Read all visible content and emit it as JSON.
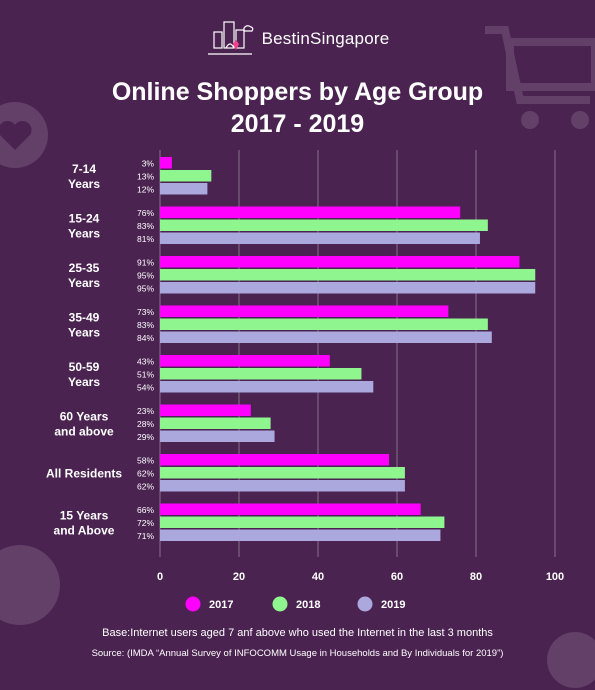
{
  "brand": {
    "name": "BestinSingapore"
  },
  "header": {
    "title_line1": "Online Shoppers by Age Group",
    "title_line2": "2017 - 2019"
  },
  "colors": {
    "background": "#4a2350",
    "2017": "#ff00ff",
    "2018": "#8ff58e",
    "2019": "#aaa8dc"
  },
  "chart_data": {
    "type": "bar",
    "orientation": "horizontal",
    "categories": [
      [
        "7-14",
        "Years"
      ],
      [
        "15-24",
        "Years"
      ],
      [
        "25-35",
        "Years"
      ],
      [
        "35-49",
        "Years"
      ],
      [
        "50-59",
        "Years"
      ],
      [
        "60 Years",
        "and above"
      ],
      [
        "All Residents"
      ],
      [
        "15 Years",
        "and Above"
      ]
    ],
    "series": [
      {
        "name": "2017",
        "color": "#ff00ff",
        "values": [
          3,
          76,
          91,
          73,
          43,
          23,
          58,
          66
        ]
      },
      {
        "name": "2018",
        "color": "#8ff58e",
        "values": [
          13,
          83,
          95,
          83,
          51,
          28,
          62,
          72
        ]
      },
      {
        "name": "2019",
        "color": "#aaa8dc",
        "values": [
          12,
          81,
          95,
          84,
          54,
          29,
          62,
          71
        ]
      }
    ],
    "value_labels": [
      [
        "3%",
        "13%",
        "12%"
      ],
      [
        "76%",
        "83%",
        "81%"
      ],
      [
        "91%",
        "95%",
        "95%"
      ],
      [
        "73%",
        "83%",
        "84%"
      ],
      [
        "43%",
        "51%",
        "54%"
      ],
      [
        "23%",
        "28%",
        "29%"
      ],
      [
        "58%",
        "62%",
        "62%"
      ],
      [
        "66%",
        "72%",
        "71%"
      ]
    ],
    "xlim": [
      0,
      100
    ],
    "xticks": [
      0,
      20,
      40,
      60,
      80,
      100
    ],
    "legend": [
      "2017",
      "2018",
      "2019"
    ],
    "legend_position": "bottom"
  },
  "notes": {
    "base": "Base:Internet users aged 7 anf above who used the Internet in the last 3 months",
    "source": "Source: (IMDA “Annual Survey of INFOCOMM Usage in Households and By Individuals for 2019”)"
  }
}
